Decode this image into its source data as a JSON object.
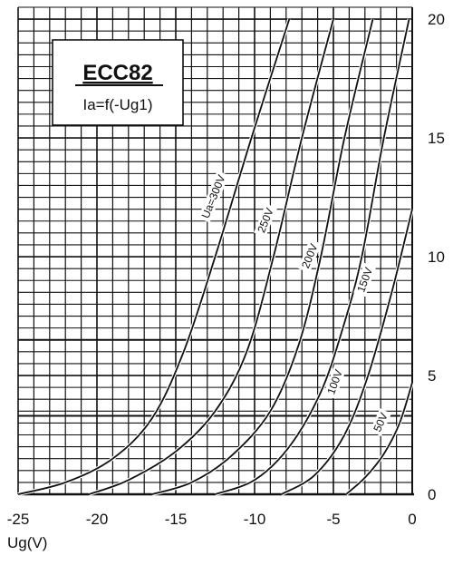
{
  "chart_data": {
    "type": "line",
    "title": "ECC82",
    "subtitle": "Ia=f(-Ug1)",
    "xlabel": "Ug(V)",
    "ylabel": "",
    "xlim": [
      -25,
      0
    ],
    "ylim": [
      0,
      20
    ],
    "x_ticks": [
      "-25",
      "-20",
      "-15",
      "-10",
      "-5",
      "0"
    ],
    "y_ticks": [
      "0",
      "5",
      "10",
      "15",
      "20"
    ],
    "grid": true,
    "series": [
      {
        "name": "Ua=300V",
        "points": [
          [
            -25,
            0
          ],
          [
            -22,
            0.5
          ],
          [
            -19,
            1.5
          ],
          [
            -16.5,
            3.2
          ],
          [
            -14.5,
            6.0
          ],
          [
            -12.5,
            10.0
          ],
          [
            -10.2,
            15.0
          ],
          [
            -7.8,
            20.0
          ]
        ]
      },
      {
        "name": "250V",
        "points": [
          [
            -20.5,
            0
          ],
          [
            -18,
            0.6
          ],
          [
            -15,
            1.8
          ],
          [
            -12.5,
            3.5
          ],
          [
            -10.5,
            6.0
          ],
          [
            -8.8,
            10.0
          ],
          [
            -7.0,
            15.0
          ],
          [
            -5.0,
            20.0
          ]
        ]
      },
      {
        "name": "200V",
        "points": [
          [
            -16.5,
            0
          ],
          [
            -14,
            0.5
          ],
          [
            -11.5,
            1.6
          ],
          [
            -9.0,
            3.5
          ],
          [
            -7.2,
            6.3
          ],
          [
            -5.8,
            10.0
          ],
          [
            -4.3,
            15.0
          ],
          [
            -2.5,
            20.0
          ]
        ]
      },
      {
        "name": "150V",
        "points": [
          [
            -12.5,
            0
          ],
          [
            -10,
            0.6
          ],
          [
            -7.8,
            2.0
          ],
          [
            -5.8,
            4.3
          ],
          [
            -4.4,
            7.0
          ],
          [
            -3.2,
            10.0
          ],
          [
            -1.8,
            15.0
          ],
          [
            -0.2,
            20.0
          ]
        ]
      },
      {
        "name": "100V",
        "points": [
          [
            -8.3,
            0
          ],
          [
            -6.2,
            0.8
          ],
          [
            -4.3,
            2.5
          ],
          [
            -2.8,
            5.0
          ],
          [
            -1.3,
            8.5
          ],
          [
            0,
            12.0
          ]
        ]
      },
      {
        "name": "50V",
        "points": [
          [
            -4.2,
            0
          ],
          [
            -3.0,
            0.7
          ],
          [
            -1.8,
            1.7
          ],
          [
            -0.8,
            3.0
          ],
          [
            0,
            4.7
          ]
        ]
      }
    ]
  }
}
